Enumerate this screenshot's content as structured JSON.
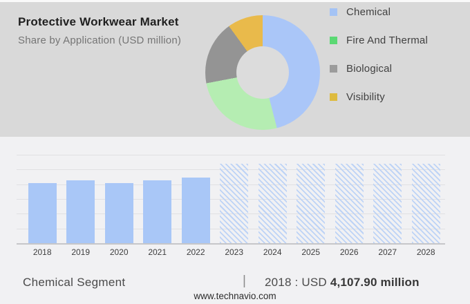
{
  "theme": {
    "header_background": "#d9d9d9",
    "body_background": "#f1f1f3",
    "gridline_color": "#e0e0e3",
    "axis_color": "#c6c6c9",
    "donut_hole_color": "#dcdcdc"
  },
  "header": {
    "title": "Protective Workwear Market",
    "subtitle": "Share by Application (USD million)"
  },
  "legend": {
    "items": [
      {
        "label": "Chemical",
        "color": "#a4c3f5"
      },
      {
        "label": "Fire And Thermal",
        "color": "#5bd974"
      },
      {
        "label": "Biological",
        "color": "#9c9c9c"
      },
      {
        "label": "Visibility",
        "color": "#debb3f"
      }
    ]
  },
  "chart_data": [
    {
      "type": "pie",
      "subtype": "donut",
      "title": "Protective Workwear Market — Share by Application (USD million)",
      "labels": [
        "Chemical",
        "Fire And Thermal",
        "Biological",
        "Visibility"
      ],
      "values_percent_est": [
        46,
        26,
        18,
        10
      ],
      "slice_colors": [
        "#aac6f8",
        "#b5edb2",
        "#949494",
        "#e9ba4b"
      ],
      "start_angle_deg": 0,
      "clockwise": true,
      "hole_ratio": 0.46,
      "legend_position": "right"
    },
    {
      "type": "bar",
      "title": "Chemical Segment, USD million, 2018-2028",
      "categories": [
        "2018",
        "2019",
        "2020",
        "2021",
        "2022",
        "2023",
        "2024",
        "2025",
        "2026",
        "2027",
        "2028"
      ],
      "values_usd_million_est": [
        4107.9,
        4300,
        4140,
        4330,
        4490,
        5450,
        5450,
        5450,
        5450,
        5450,
        5450
      ],
      "actual_categories": [
        "2018",
        "2019",
        "2020",
        "2021",
        "2022"
      ],
      "forecast_categories_hatched": [
        "2023",
        "2024",
        "2025",
        "2026",
        "2027",
        "2028"
      ],
      "labeled_point": {
        "category": "2018",
        "value_label": "2018 : USD 4,107.90 million"
      },
      "bar_color": "#a9c7f7",
      "hatch_color": "#bdd3f6",
      "ylim_est": [
        0,
        6070
      ],
      "gridlines": true,
      "xlabel": "",
      "ylabel": ""
    }
  ],
  "footer": {
    "segment_label": "Chemical Segment",
    "separator": "|",
    "stat_prefix": "2018 : USD",
    "stat_value": "4,107.90 million",
    "website": "www.technavio.com"
  }
}
